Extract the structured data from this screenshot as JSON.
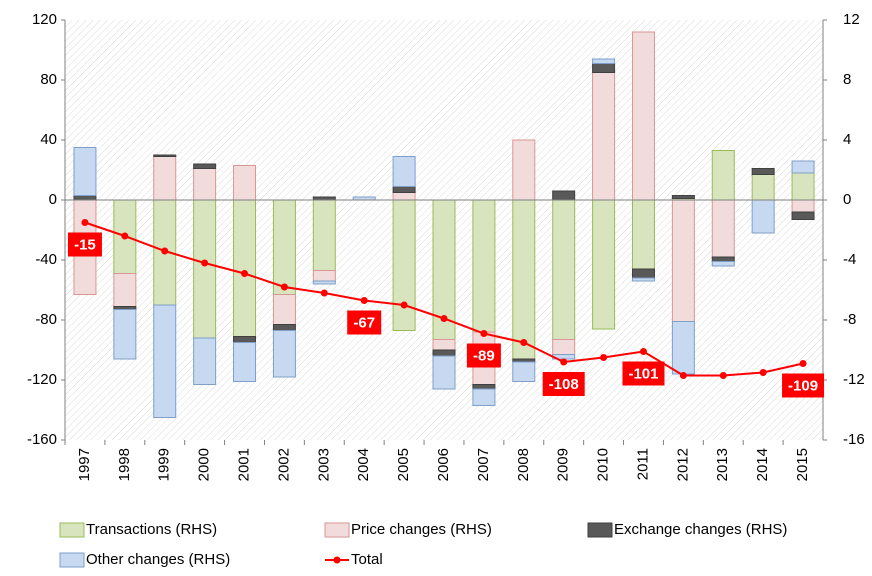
{
  "chart_data": {
    "type": "bar",
    "categories": [
      "1997",
      "1998",
      "1999",
      "2000",
      "2001",
      "2002",
      "2003",
      "2004",
      "2005",
      "2006",
      "2007",
      "2008",
      "2009",
      "2010",
      "2011",
      "2012",
      "2013",
      "2014",
      "2015"
    ],
    "series": [
      {
        "name": "Transactions (RHS)",
        "color": "#d7e4bd",
        "stroke": "#9bbb59",
        "axis": "y2",
        "type": "bar",
        "values": [
          0,
          -4.9,
          -7.0,
          -9.2,
          -9.1,
          -6.3,
          -4.7,
          0,
          -8.7,
          -9.3,
          -8.8,
          -10.6,
          -9.3,
          -8.6,
          -4.6,
          0.1,
          3.3,
          1.7,
          1.8
        ]
      },
      {
        "name": "Price changes (RHS)",
        "color": "#f2dcdb",
        "stroke": "#d99694",
        "axis": "y2",
        "type": "bar",
        "values": [
          -6.3,
          -2.2,
          2.9,
          2.1,
          2.3,
          -2.0,
          -0.7,
          0,
          0.5,
          -0.7,
          -3.5,
          4.0,
          -1.0,
          8.5,
          11.2,
          -8.1,
          -3.8,
          0,
          -0.8
        ]
      },
      {
        "name": "Exchange changes (RHS)",
        "color": "#595959",
        "stroke": "#404040",
        "axis": "y2",
        "type": "bar",
        "values": [
          0.3,
          -0.2,
          0.1,
          0.3,
          -0.4,
          -0.4,
          0.2,
          0,
          0.4,
          -0.4,
          -0.3,
          -0.2,
          0.6,
          0.6,
          -0.6,
          0.2,
          -0.3,
          0.4,
          -0.5
        ]
      },
      {
        "name": "Other changes (RHS)",
        "color": "#c6d9f1",
        "stroke": "#7f9fc8",
        "axis": "y2",
        "type": "bar",
        "values": [
          3.2,
          -3.3,
          -7.5,
          -3.1,
          -2.6,
          -3.1,
          -0.2,
          0.2,
          2.0,
          -2.2,
          -1.1,
          -1.3,
          -0.3,
          0.3,
          -0.2,
          -3.5,
          -0.3,
          -2.2,
          0.8
        ]
      },
      {
        "name": "Total",
        "color": "#ff0000",
        "axis": "y",
        "type": "line",
        "values": [
          -15,
          -24,
          -34,
          -42,
          -49,
          -58,
          -62,
          -67,
          -70,
          -79,
          -89,
          -95,
          -108,
          -105,
          -101,
          -117,
          -117,
          -115,
          -109
        ],
        "labels_shown": [
          true,
          false,
          false,
          false,
          false,
          false,
          false,
          true,
          false,
          false,
          true,
          false,
          true,
          false,
          true,
          false,
          false,
          false,
          true
        ]
      }
    ],
    "ylim": [
      -160,
      120
    ],
    "yticks": [
      -160,
      -120,
      -80,
      -40,
      0,
      40,
      80,
      120
    ],
    "y2lim": [
      -16,
      12
    ],
    "y2ticks": [
      -16,
      -12,
      -8,
      -4,
      0,
      4,
      8,
      12
    ],
    "legend": "bottom"
  }
}
